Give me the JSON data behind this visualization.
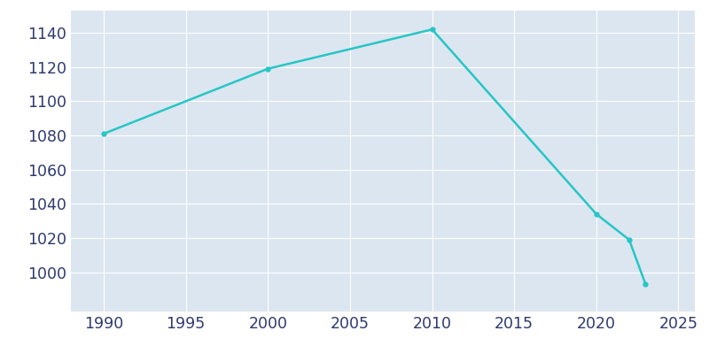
{
  "years": [
    1990,
    2000,
    2010,
    2020,
    2022,
    2023
  ],
  "population": [
    1081,
    1119,
    1142,
    1034,
    1019,
    993
  ],
  "line_color": "#26C6C6",
  "marker": "o",
  "marker_size": 3.5,
  "line_width": 1.8,
  "axes_facecolor": "#dce6f0",
  "fig_facecolor": "#ffffff",
  "grid_color": "#ffffff",
  "tick_label_color": "#2e3a6e",
  "xlim": [
    1988,
    2026
  ],
  "ylim": [
    977,
    1153
  ],
  "xticks": [
    1990,
    1995,
    2000,
    2005,
    2010,
    2015,
    2020,
    2025
  ],
  "yticks": [
    1000,
    1020,
    1040,
    1060,
    1080,
    1100,
    1120,
    1140
  ],
  "tick_fontsize": 12.5
}
